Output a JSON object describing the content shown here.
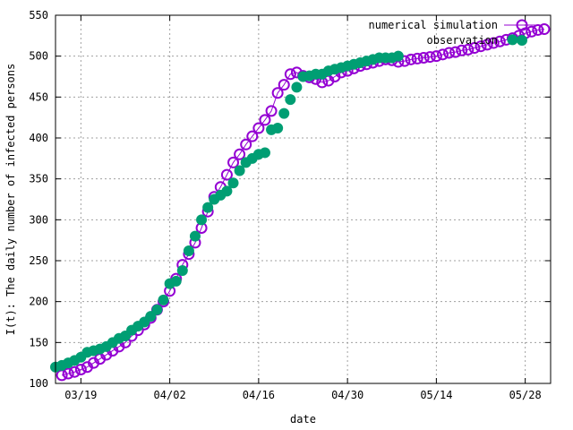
{
  "chart_data": {
    "type": "scatter",
    "title": "",
    "xlabel": "date",
    "ylabel": "I(t): The daily number of infected persons",
    "x_range_days_note": "",
    "xlim": [
      "2020-03-15",
      "2020-06-01"
    ],
    "ylim": [
      100,
      550
    ],
    "yticks": [
      100,
      150,
      200,
      250,
      300,
      350,
      400,
      450,
      500,
      550
    ],
    "xticks": [
      {
        "date": "2020-03-19",
        "label": "03/19"
      },
      {
        "date": "2020-04-02",
        "label": "04/02"
      },
      {
        "date": "2020-04-16",
        "label": "04/16"
      },
      {
        "date": "2020-04-30",
        "label": "04/30"
      },
      {
        "date": "2020-05-14",
        "label": "05/14"
      },
      {
        "date": "2020-05-28",
        "label": "05/28"
      }
    ],
    "grid": true,
    "legend_position": "top-right",
    "series": [
      {
        "name": "numerical simulation",
        "marker": "open-circle",
        "color": "#9400d3",
        "x": [
          "2020-03-16",
          "2020-03-17",
          "2020-03-18",
          "2020-03-19",
          "2020-03-20",
          "2020-03-21",
          "2020-03-22",
          "2020-03-23",
          "2020-03-24",
          "2020-03-25",
          "2020-03-26",
          "2020-03-27",
          "2020-03-28",
          "2020-03-29",
          "2020-03-30",
          "2020-03-31",
          "2020-04-01",
          "2020-04-02",
          "2020-04-03",
          "2020-04-04",
          "2020-04-05",
          "2020-04-06",
          "2020-04-07",
          "2020-04-08",
          "2020-04-09",
          "2020-04-10",
          "2020-04-11",
          "2020-04-12",
          "2020-04-13",
          "2020-04-14",
          "2020-04-15",
          "2020-04-16",
          "2020-04-17",
          "2020-04-18",
          "2020-04-19",
          "2020-04-20",
          "2020-04-21",
          "2020-04-22",
          "2020-04-23",
          "2020-04-24",
          "2020-04-25",
          "2020-04-26",
          "2020-04-27",
          "2020-04-28",
          "2020-04-29",
          "2020-04-30",
          "2020-05-01",
          "2020-05-02",
          "2020-05-03",
          "2020-05-04",
          "2020-05-05",
          "2020-05-06",
          "2020-05-07",
          "2020-05-08",
          "2020-05-09",
          "2020-05-10",
          "2020-05-11",
          "2020-05-12",
          "2020-05-13",
          "2020-05-14",
          "2020-05-15",
          "2020-05-16",
          "2020-05-17",
          "2020-05-18",
          "2020-05-19",
          "2020-05-20",
          "2020-05-21",
          "2020-05-22",
          "2020-05-23",
          "2020-05-24",
          "2020-05-25",
          "2020-05-26",
          "2020-05-27",
          "2020-05-28",
          "2020-05-29",
          "2020-05-30",
          "2020-05-31"
        ],
        "y": [
          110,
          112,
          114,
          117,
          120,
          125,
          130,
          135,
          140,
          145,
          150,
          158,
          165,
          172,
          180,
          190,
          200,
          213,
          228,
          245,
          258,
          272,
          290,
          310,
          328,
          340,
          355,
          370,
          380,
          392,
          402,
          412,
          422,
          433,
          455,
          465,
          478,
          480,
          476,
          474,
          472,
          468,
          470,
          475,
          480,
          482,
          485,
          488,
          490,
          492,
          494,
          496,
          495,
          493,
          494,
          496,
          497,
          498,
          499,
          500,
          502,
          504,
          505,
          507,
          508,
          510,
          512,
          514,
          516,
          518,
          520,
          522,
          525,
          528,
          530,
          532,
          533
        ]
      },
      {
        "name": "observation",
        "marker": "filled-circle",
        "color": "#009e73",
        "x": [
          "2020-03-15",
          "2020-03-16",
          "2020-03-17",
          "2020-03-18",
          "2020-03-19",
          "2020-03-20",
          "2020-03-21",
          "2020-03-22",
          "2020-03-23",
          "2020-03-24",
          "2020-03-25",
          "2020-03-26",
          "2020-03-27",
          "2020-03-28",
          "2020-03-29",
          "2020-03-30",
          "2020-03-31",
          "2020-04-01",
          "2020-04-02",
          "2020-04-03",
          "2020-04-04",
          "2020-04-05",
          "2020-04-06",
          "2020-04-07",
          "2020-04-08",
          "2020-04-09",
          "2020-04-10",
          "2020-04-11",
          "2020-04-12",
          "2020-04-13",
          "2020-04-14",
          "2020-04-15",
          "2020-04-16",
          "2020-04-17",
          "2020-04-18",
          "2020-04-19",
          "2020-04-20",
          "2020-04-21",
          "2020-04-22",
          "2020-04-23",
          "2020-04-24",
          "2020-04-25",
          "2020-04-26",
          "2020-04-27",
          "2020-04-28",
          "2020-04-29",
          "2020-04-30",
          "2020-05-01",
          "2020-05-02",
          "2020-05-03",
          "2020-05-04",
          "2020-05-05",
          "2020-05-06",
          "2020-05-07",
          "2020-05-08",
          "2020-05-26"
        ],
        "y": [
          120,
          122,
          125,
          128,
          132,
          138,
          140,
          142,
          145,
          150,
          155,
          158,
          165,
          170,
          175,
          182,
          190,
          202,
          222,
          225,
          238,
          262,
          280,
          300,
          315,
          325,
          330,
          335,
          345,
          360,
          370,
          375,
          380,
          382,
          410,
          412,
          430,
          447,
          462,
          475,
          476,
          478,
          478,
          482,
          484,
          486,
          488,
          490,
          492,
          494,
          496,
          498,
          498,
          498,
          500,
          520
        ]
      }
    ]
  }
}
